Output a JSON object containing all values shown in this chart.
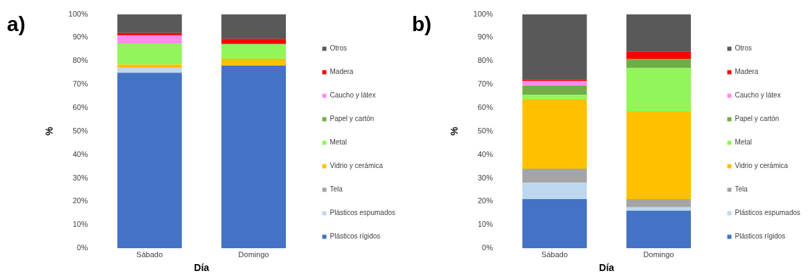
{
  "chart_data": [
    {
      "type": "bar",
      "title": "a)",
      "stacked": true,
      "xlabel": "Día",
      "ylabel": "%",
      "categories": [
        "Sábado",
        "Domingo"
      ],
      "ylim": [
        0,
        100
      ],
      "yticks": [
        {
          "value": 0,
          "label": "0%"
        },
        {
          "value": 10,
          "label": "10%"
        },
        {
          "value": 20,
          "label": "20%"
        },
        {
          "value": 30,
          "label": "30%"
        },
        {
          "value": 40,
          "label": "40%"
        },
        {
          "value": 50,
          "label": "50%"
        },
        {
          "value": 60,
          "label": "60%"
        },
        {
          "value": 70,
          "label": "70%"
        },
        {
          "value": 80,
          "label": "80%"
        },
        {
          "value": 90,
          "label": "90%"
        },
        {
          "value": 100,
          "label": "100%"
        }
      ],
      "grid": false,
      "legend": "right",
      "series": [
        {
          "name": "Plásticos rígidos",
          "color": "#4472c4",
          "values": [
            75,
            78
          ]
        },
        {
          "name": "Plásticos espumados",
          "color": "#bdd7ee",
          "values": [
            2,
            0
          ]
        },
        {
          "name": "Tela",
          "color": "#a5a5a5",
          "values": [
            0,
            0
          ]
        },
        {
          "name": "Vidrio y cerámica",
          "color": "#ffc000",
          "values": [
            1.5,
            3
          ]
        },
        {
          "name": "Metal",
          "color": "#92f55a",
          "values": [
            9,
            6
          ]
        },
        {
          "name": "Papel y cartón",
          "color": "#70ad47",
          "values": [
            0,
            0.5
          ]
        },
        {
          "name": "Caucho y látex",
          "color": "#ff8bf0",
          "values": [
            3.5,
            0
          ]
        },
        {
          "name": "Madera",
          "color": "#ff0000",
          "values": [
            1,
            2
          ]
        },
        {
          "name": "Otros",
          "color": "#595959",
          "values": [
            8,
            10.5
          ]
        }
      ]
    },
    {
      "type": "bar",
      "title": "b)",
      "stacked": true,
      "xlabel": "Día",
      "ylabel": "%",
      "categories": [
        "Sábado",
        "Domingo"
      ],
      "ylim": [
        0,
        100
      ],
      "yticks": [
        {
          "value": 0,
          "label": "0%"
        },
        {
          "value": 10,
          "label": "10%"
        },
        {
          "value": 20,
          "label": "20%"
        },
        {
          "value": 30,
          "label": "30%"
        },
        {
          "value": 40,
          "label": "40%"
        },
        {
          "value": 50,
          "label": "50%"
        },
        {
          "value": 60,
          "label": "60%"
        },
        {
          "value": 70,
          "label": "70%"
        },
        {
          "value": 80,
          "label": "80%"
        },
        {
          "value": 90,
          "label": "90%"
        },
        {
          "value": 100,
          "label": "100%"
        }
      ],
      "grid": false,
      "legend": "right",
      "series": [
        {
          "name": "Plásticos rígidos",
          "color": "#4472c4",
          "values": [
            21,
            16
          ]
        },
        {
          "name": "Plásticos espumados",
          "color": "#bdd7ee",
          "values": [
            7,
            1.5
          ]
        },
        {
          "name": "Tela",
          "color": "#a5a5a5",
          "values": [
            6,
            3.5
          ]
        },
        {
          "name": "Vidrio y cerámica",
          "color": "#ffc000",
          "values": [
            29.5,
            37.5
          ]
        },
        {
          "name": "Metal",
          "color": "#92f55a",
          "values": [
            2,
            18.5
          ]
        },
        {
          "name": "Papel y cartón",
          "color": "#70ad47",
          "values": [
            4,
            4
          ]
        },
        {
          "name": "Caucho y látex",
          "color": "#ff8bf0",
          "values": [
            2,
            0
          ]
        },
        {
          "name": "Madera",
          "color": "#ff0000",
          "values": [
            0.5,
            3
          ]
        },
        {
          "name": "Otros",
          "color": "#595959",
          "values": [
            28,
            16
          ]
        }
      ]
    }
  ]
}
